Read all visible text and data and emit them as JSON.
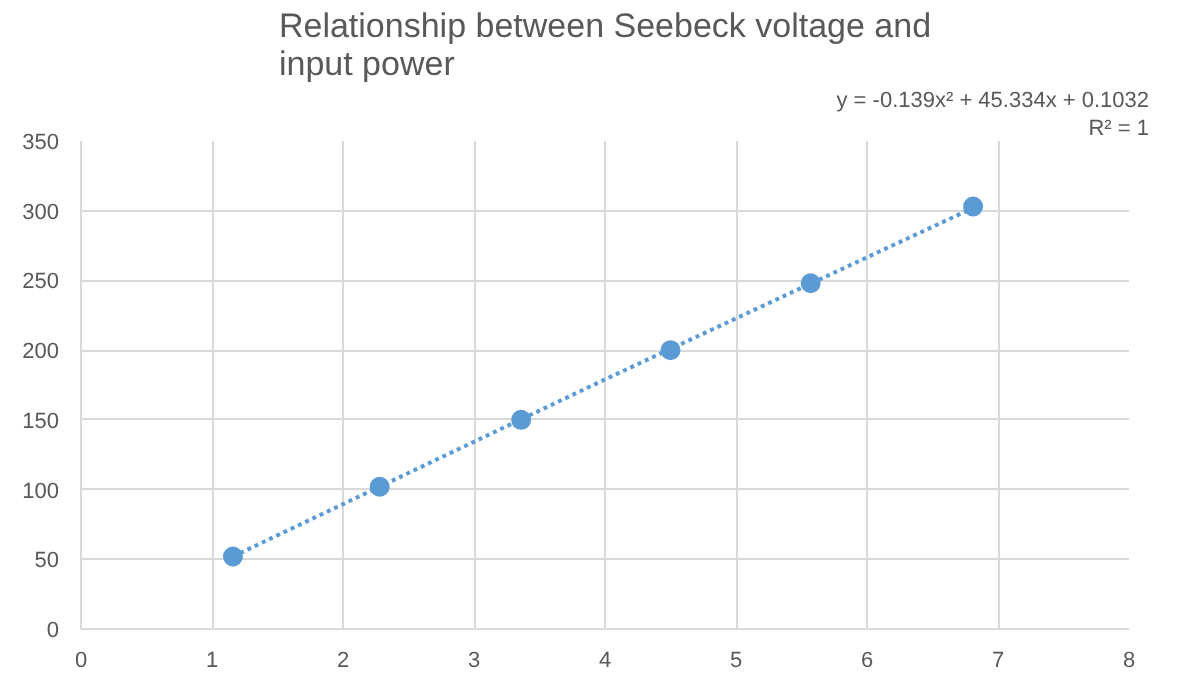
{
  "chart_data": {
    "type": "scatter",
    "title": "Relationship between Seebeck voltage and input power",
    "series": [
      {
        "color": "#5b9bd5",
        "marker": "circle",
        "x": [
          1.16,
          2.28,
          3.36,
          4.5,
          5.57,
          6.81
        ],
        "values": [
          52,
          102,
          150,
          200,
          248,
          303
        ]
      },
      {
        "type": "line",
        "color": "#5b9bd5",
        "line_style": "dotted",
        "x": [
          1.16,
          4.0,
          6.81
        ],
        "values": [
          52,
          179,
          302
        ]
      }
    ],
    "annotations": [
      "y = -0.139x² + 45.334x + 0.1032",
      "R² = 1"
    ],
    "xlim": [
      0,
      8
    ],
    "xticks": [
      0,
      1,
      2,
      3,
      4,
      5,
      6,
      7,
      8
    ],
    "ylim": [
      0,
      350
    ],
    "yticks": [
      0,
      50,
      100,
      150,
      200,
      250,
      300,
      350
    ],
    "grid": true
  }
}
